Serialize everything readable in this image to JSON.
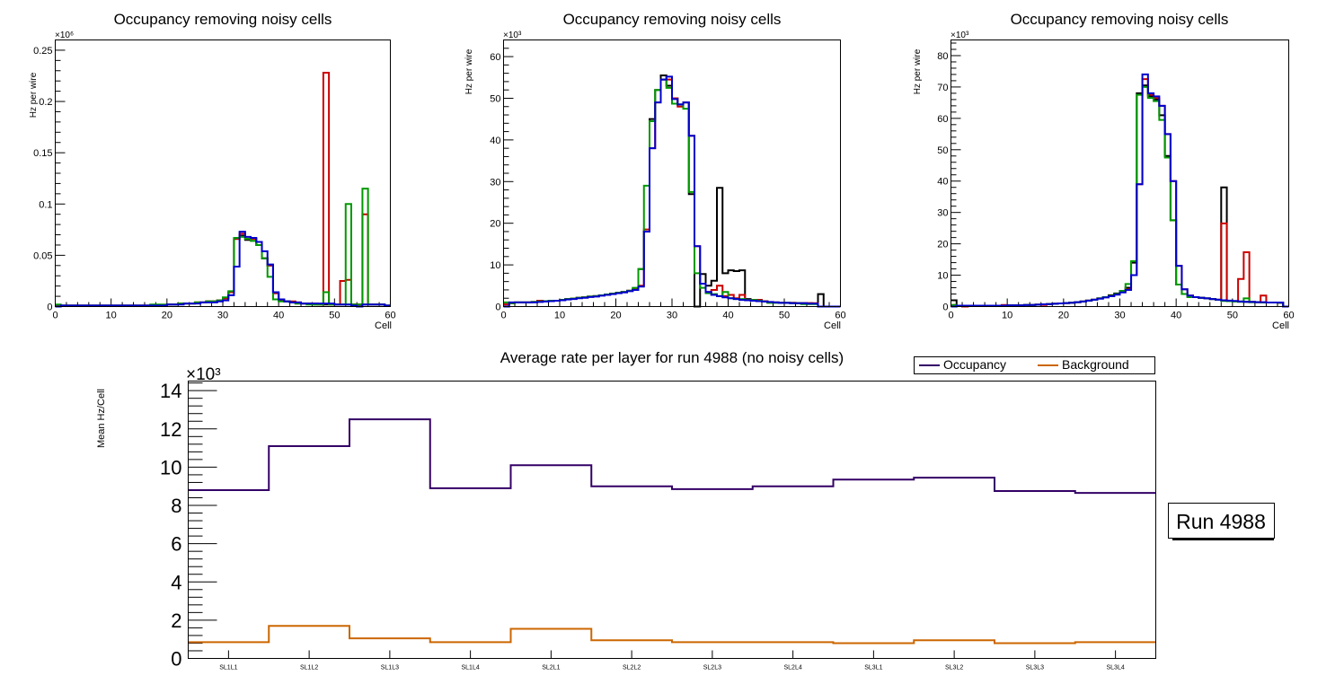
{
  "chart_data": [
    {
      "type": "line",
      "style": "step-histogram",
      "title": "Occupancy removing noisy cells",
      "xlabel": "Cell",
      "ylabel": "Hz per wire",
      "y_multiplier_label": "×10⁶",
      "xlim": [
        0,
        60
      ],
      "ylim": [
        0,
        0.26
      ],
      "x_ticks": [
        "0",
        "10",
        "20",
        "30",
        "40",
        "50",
        "60"
      ],
      "y_ticks": [
        "0",
        "0.05",
        "0.1",
        "0.15",
        "0.2",
        "0.25"
      ],
      "y_tick_values": [
        0,
        0.05,
        0.1,
        0.15,
        0.2,
        0.25
      ],
      "bin_edges_start": 0,
      "bin_width": 1,
      "series": [
        {
          "name": "black",
          "color": "#000000",
          "values": [
            0.001,
            0.001,
            0.001,
            0.001,
            0.001,
            0.001,
            0.001,
            0.001,
            0.001,
            0.001,
            0.001,
            0.001,
            0.001,
            0.001,
            0.001,
            0.001,
            0.001,
            0.001,
            0.001,
            0.001,
            0.002,
            0.002,
            0.003,
            0.003,
            0.003,
            0.004,
            0.004,
            0.005,
            0.005,
            0.006,
            0.008,
            0.014,
            0.066,
            0.069,
            0.065,
            0.066,
            0.06,
            0.047,
            0.04,
            0.013,
            0.006,
            0.005,
            0.004,
            0.003,
            0.003,
            0.003,
            0.002,
            0.002,
            0.002,
            0.002,
            0.002,
            0.002,
            0.002,
            0.002,
            0.002,
            0.002,
            0.002,
            0.002,
            0.002,
            0.001
          ]
        },
        {
          "name": "red",
          "color": "#cc0000",
          "values": [
            0.001,
            0.001,
            0.001,
            0.001,
            0.001,
            0.001,
            0.001,
            0.001,
            0.001,
            0.001,
            0.001,
            0.001,
            0.001,
            0.001,
            0.001,
            0.001,
            0.001,
            0.001,
            0.001,
            0.001,
            0.002,
            0.002,
            0.003,
            0.003,
            0.003,
            0.004,
            0.004,
            0.005,
            0.005,
            0.006,
            0.008,
            0.014,
            0.066,
            0.071,
            0.066,
            0.066,
            0.06,
            0.047,
            0.04,
            0.013,
            0.006,
            0.005,
            0.005,
            0.004,
            0.003,
            0.003,
            0.003,
            0.002,
            0.228,
            0.002,
            0.002,
            0.025,
            0.026,
            0.002,
            0.002,
            0.09,
            0.002,
            0.002,
            0.002,
            0.001
          ]
        },
        {
          "name": "green",
          "color": "#009900",
          "values": [
            0.002,
            0.001,
            0.001,
            0.001,
            0.001,
            0.001,
            0.001,
            0.001,
            0.001,
            0.001,
            0.001,
            0.001,
            0.001,
            0.001,
            0.001,
            0.001,
            0.001,
            0.002,
            0.002,
            0.002,
            0.002,
            0.002,
            0.003,
            0.003,
            0.003,
            0.004,
            0.004,
            0.005,
            0.005,
            0.006,
            0.009,
            0.015,
            0.067,
            0.068,
            0.066,
            0.064,
            0.06,
            0.047,
            0.029,
            0.007,
            0.005,
            0.005,
            0.004,
            0.003,
            0.003,
            0.002,
            0.002,
            0.002,
            0.014,
            0.002,
            0.002,
            0.002,
            0.1,
            0.002,
            0.002,
            0.115,
            0.002,
            0.002,
            0.002,
            0.001
          ]
        },
        {
          "name": "blue",
          "color": "#0000cc",
          "values": [
            0.0,
            0.001,
            0.001,
            0.001,
            0.001,
            0.001,
            0.001,
            0.001,
            0.001,
            0.001,
            0.001,
            0.001,
            0.001,
            0.001,
            0.001,
            0.001,
            0.001,
            0.001,
            0.001,
            0.001,
            0.002,
            0.002,
            0.002,
            0.003,
            0.003,
            0.003,
            0.004,
            0.004,
            0.004,
            0.005,
            0.006,
            0.011,
            0.039,
            0.073,
            0.068,
            0.067,
            0.063,
            0.054,
            0.041,
            0.014,
            0.007,
            0.005,
            0.004,
            0.004,
            0.003,
            0.003,
            0.003,
            0.003,
            0.003,
            0.003,
            0.002,
            0.002,
            0.002,
            0.001,
            0.0,
            0.002,
            0.002,
            0.002,
            0.002,
            0.001
          ]
        }
      ]
    },
    {
      "type": "line",
      "style": "step-histogram",
      "title": "Occupancy removing noisy cells",
      "xlabel": "Cell",
      "ylabel": "Hz per wire",
      "y_multiplier_label": "×10³",
      "xlim": [
        0,
        60
      ],
      "ylim": [
        0,
        64
      ],
      "x_ticks": [
        "0",
        "10",
        "20",
        "30",
        "40",
        "50",
        "60"
      ],
      "y_ticks": [
        "0",
        "10",
        "20",
        "30",
        "40",
        "50",
        "60"
      ],
      "y_tick_values": [
        0,
        10,
        20,
        30,
        40,
        50,
        60
      ],
      "bin_edges_start": 0,
      "bin_width": 1,
      "series": [
        {
          "name": "black",
          "color": "#000000",
          "values": [
            0.5,
            0.8,
            1.0,
            1.0,
            1.0,
            1.1,
            1.2,
            1.3,
            1.4,
            1.4,
            1.6,
            1.8,
            1.9,
            2.1,
            2.2,
            2.4,
            2.5,
            2.7,
            2.9,
            3.1,
            3.3,
            3.5,
            3.8,
            4.2,
            9.0,
            18.0,
            45.0,
            52.0,
            55.5,
            53.0,
            50.0,
            48.5,
            49.0,
            27.0,
            0.0,
            7.8,
            5.0,
            6.2,
            28.5,
            8.0,
            8.7,
            8.5,
            8.7,
            1.8,
            1.6,
            1.6,
            1.3,
            1.0,
            1.0,
            0.9,
            0.9,
            0.9,
            0.8,
            0.8,
            0.8,
            0.7,
            3.0,
            0.0,
            0.0,
            0.0
          ]
        },
        {
          "name": "red",
          "color": "#cc0000",
          "values": [
            0.5,
            0.8,
            1.0,
            1.0,
            1.0,
            1.1,
            1.4,
            1.3,
            1.4,
            1.4,
            1.6,
            1.8,
            1.9,
            2.1,
            2.2,
            2.4,
            2.5,
            2.7,
            2.9,
            3.1,
            3.3,
            3.5,
            3.8,
            4.2,
            5.0,
            18.5,
            38.0,
            49.0,
            54.5,
            54.5,
            50.0,
            48.0,
            49.0,
            41.0,
            14.5,
            5.5,
            3.5,
            4.0,
            5.0,
            2.5,
            2.8,
            2.0,
            2.8,
            1.6,
            1.6,
            1.6,
            1.3,
            1.0,
            1.0,
            0.9,
            0.9,
            0.9,
            0.8,
            0.8,
            0.8,
            0.8,
            0.0,
            0.0,
            0.0,
            0.0
          ]
        },
        {
          "name": "green",
          "color": "#009900",
          "values": [
            1.0,
            0.8,
            1.0,
            1.0,
            1.0,
            1.1,
            1.2,
            1.3,
            1.4,
            1.4,
            1.6,
            1.8,
            1.9,
            2.1,
            2.2,
            2.4,
            2.5,
            2.7,
            2.9,
            3.1,
            3.3,
            3.5,
            3.8,
            4.5,
            9.0,
            29.0,
            44.5,
            52.0,
            54.5,
            52.5,
            48.7,
            48.5,
            47.5,
            27.5,
            8.0,
            4.5,
            3.2,
            3.0,
            2.5,
            3.5,
            2.0,
            1.8,
            1.8,
            1.6,
            1.6,
            1.4,
            1.2,
            0.9,
            0.9,
            0.9,
            0.9,
            0.8,
            0.8,
            0.6,
            0.6,
            0.6,
            0.0,
            0.0,
            0.0,
            0.0
          ]
        },
        {
          "name": "blue",
          "color": "#0000cc",
          "values": [
            0.0,
            1.0,
            1.0,
            1.0,
            1.0,
            1.0,
            1.1,
            1.2,
            1.3,
            1.4,
            1.5,
            1.7,
            1.8,
            2.0,
            2.1,
            2.3,
            2.4,
            2.6,
            2.8,
            3.0,
            3.2,
            3.4,
            3.7,
            4.0,
            4.8,
            18.0,
            38.0,
            49.0,
            54.5,
            55.2,
            49.8,
            48.5,
            49.0,
            41.0,
            14.5,
            5.5,
            3.5,
            2.8,
            2.5,
            2.2,
            2.0,
            1.8,
            1.6,
            1.5,
            1.4,
            1.3,
            1.2,
            1.1,
            1.0,
            0.9,
            0.9,
            0.8,
            0.8,
            0.8,
            0.7,
            0.7,
            0.0,
            0.0,
            0.0,
            0.0
          ]
        }
      ]
    },
    {
      "type": "line",
      "style": "step-histogram",
      "title": "Occupancy removing noisy cells",
      "xlabel": "Cell",
      "ylabel": "Hz per wire",
      "y_multiplier_label": "×10³",
      "xlim": [
        0,
        60
      ],
      "ylim": [
        0,
        85
      ],
      "x_ticks": [
        "0",
        "10",
        "20",
        "30",
        "40",
        "50",
        "60"
      ],
      "y_ticks": [
        "0",
        "10",
        "20",
        "30",
        "40",
        "50",
        "60",
        "70",
        "80"
      ],
      "y_tick_values": [
        0,
        10,
        20,
        30,
        40,
        50,
        60,
        70,
        80
      ],
      "bin_edges_start": 0,
      "bin_width": 1,
      "series": [
        {
          "name": "black",
          "color": "#000000",
          "values": [
            2.0,
            0.3,
            0.3,
            0.3,
            0.3,
            0.3,
            0.3,
            0.3,
            0.3,
            0.3,
            0.4,
            0.4,
            0.4,
            0.5,
            0.5,
            0.6,
            0.7,
            0.8,
            0.9,
            1.0,
            1.1,
            1.2,
            1.4,
            1.6,
            1.9,
            2.2,
            2.6,
            3.0,
            3.6,
            4.2,
            5.0,
            6.0,
            14.0,
            68.0,
            70.5,
            67.0,
            66.0,
            61.0,
            48.0,
            27.5,
            7.0,
            4.0,
            3.2,
            3.0,
            2.8,
            2.6,
            2.4,
            2.2,
            38.0,
            1.8,
            1.7,
            1.6,
            1.5,
            1.4,
            1.4,
            1.3,
            1.3,
            1.3,
            1.2,
            0.0
          ]
        },
        {
          "name": "red",
          "color": "#cc0000",
          "values": [
            0.5,
            0.3,
            0.0,
            0.3,
            0.3,
            0.3,
            0.3,
            0.3,
            0.3,
            0.5,
            0.4,
            0.4,
            0.4,
            0.5,
            0.5,
            0.6,
            0.5,
            0.8,
            0.9,
            1.0,
            1.1,
            1.2,
            1.4,
            1.6,
            1.9,
            2.2,
            2.6,
            3.0,
            3.4,
            4.0,
            4.6,
            5.5,
            10.0,
            39.0,
            72.5,
            67.5,
            66.5,
            64.0,
            55.0,
            40.0,
            13.0,
            5.5,
            3.5,
            3.0,
            2.8,
            2.6,
            2.4,
            2.2,
            26.5,
            1.8,
            1.7,
            8.8,
            17.3,
            1.5,
            1.4,
            3.5,
            1.3,
            1.3,
            1.2,
            0.0
          ]
        },
        {
          "name": "green",
          "color": "#009900",
          "values": [
            0.5,
            0.3,
            0.3,
            0.3,
            0.3,
            0.3,
            0.3,
            0.3,
            0.3,
            0.3,
            0.4,
            0.4,
            0.4,
            0.5,
            0.5,
            0.6,
            0.7,
            0.8,
            0.9,
            1.0,
            1.1,
            1.2,
            1.4,
            1.6,
            1.9,
            2.2,
            2.6,
            3.0,
            3.4,
            4.0,
            5.0,
            7.2,
            14.5,
            67.5,
            70.0,
            66.5,
            65.5,
            59.5,
            47.5,
            27.5,
            7.0,
            4.0,
            3.0,
            3.0,
            2.8,
            2.6,
            2.4,
            2.2,
            1.8,
            1.7,
            1.6,
            1.5,
            2.6,
            1.4,
            1.4,
            1.3,
            1.3,
            1.3,
            1.2,
            0.0
          ]
        },
        {
          "name": "blue",
          "color": "#0000cc",
          "values": [
            0.0,
            0.3,
            0.3,
            0.3,
            0.3,
            0.3,
            0.3,
            0.3,
            0.3,
            0.3,
            0.4,
            0.4,
            0.4,
            0.5,
            0.5,
            0.6,
            0.7,
            0.8,
            0.9,
            1.0,
            1.1,
            1.2,
            1.4,
            1.6,
            1.9,
            2.2,
            2.5,
            2.9,
            3.3,
            3.8,
            4.5,
            5.3,
            10.0,
            39.0,
            74.0,
            68.0,
            67.0,
            64.0,
            55.0,
            40.0,
            13.0,
            5.5,
            3.5,
            3.0,
            2.8,
            2.6,
            2.4,
            2.2,
            2.0,
            1.9,
            1.8,
            1.6,
            1.5,
            1.5,
            1.4,
            1.4,
            1.3,
            1.3,
            1.3,
            0.0
          ]
        }
      ]
    },
    {
      "type": "line",
      "style": "step-histogram",
      "title": "Average rate per layer for run 4988 (no noisy cells)",
      "xlabel": "",
      "ylabel": "Mean Hz/Cell",
      "y_multiplier_label": "×10³",
      "ylim": [
        0,
        14.5
      ],
      "categories": [
        "SL1L1",
        "SL1L2",
        "SL1L3",
        "SL1L4",
        "SL2L1",
        "SL2L2",
        "SL2L3",
        "SL2L4",
        "SL3L1",
        "SL3L2",
        "SL3L3",
        "SL3L4"
      ],
      "y_ticks": [
        "0",
        "2",
        "4",
        "6",
        "8",
        "10",
        "12",
        "14"
      ],
      "y_tick_values": [
        0,
        2,
        4,
        6,
        8,
        10,
        12,
        14
      ],
      "legend": {
        "position": "top-right",
        "entries": [
          "Occupancy",
          "Background"
        ]
      },
      "series": [
        {
          "name": "Occupancy",
          "color": "#330066",
          "values": [
            8.8,
            11.1,
            12.5,
            8.9,
            10.1,
            9.0,
            8.85,
            9.0,
            9.35,
            9.45,
            8.75,
            8.65
          ]
        },
        {
          "name": "Background",
          "color": "#cc6600",
          "values": [
            0.85,
            1.7,
            1.05,
            0.85,
            1.55,
            0.95,
            0.85,
            0.85,
            0.8,
            0.95,
            0.8,
            0.85
          ]
        }
      ],
      "annotation": "Run 4988"
    }
  ]
}
